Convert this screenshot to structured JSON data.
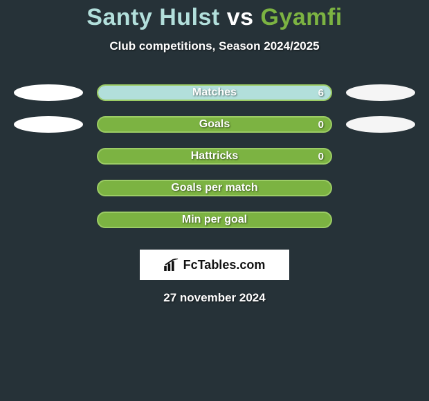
{
  "title": {
    "player1": "Santy Hulst",
    "vs": "vs",
    "player2": "Gyamfi"
  },
  "subtitle": "Club competitions, Season 2024/2025",
  "stats": [
    {
      "label": "Matches",
      "left_pct": 100,
      "right_value": "6",
      "show_left_badge": true,
      "show_right_badge": true
    },
    {
      "label": "Goals",
      "left_pct": 0,
      "right_value": "0",
      "show_left_badge": true,
      "show_right_badge": true
    },
    {
      "label": "Hattricks",
      "left_pct": 0,
      "right_value": "0",
      "show_left_badge": false,
      "show_right_badge": false
    },
    {
      "label": "Goals per match",
      "left_pct": 0,
      "right_value": "",
      "show_left_badge": false,
      "show_right_badge": false
    },
    {
      "label": "Min per goal",
      "left_pct": 0,
      "right_value": "",
      "show_left_badge": false,
      "show_right_badge": false
    }
  ],
  "logo_text": "FcTables.com",
  "date": "27 november 2024",
  "colors": {
    "bg": "#263238",
    "p1": "#b2dfdb",
    "p2": "#7cb342",
    "bar_fill_left": "#b2dfdb",
    "bar_track": "#7cb342",
    "bar_border": "#9ccc65",
    "ellipse_left": "#ffffff",
    "ellipse_right": "#f5f5f5"
  }
}
